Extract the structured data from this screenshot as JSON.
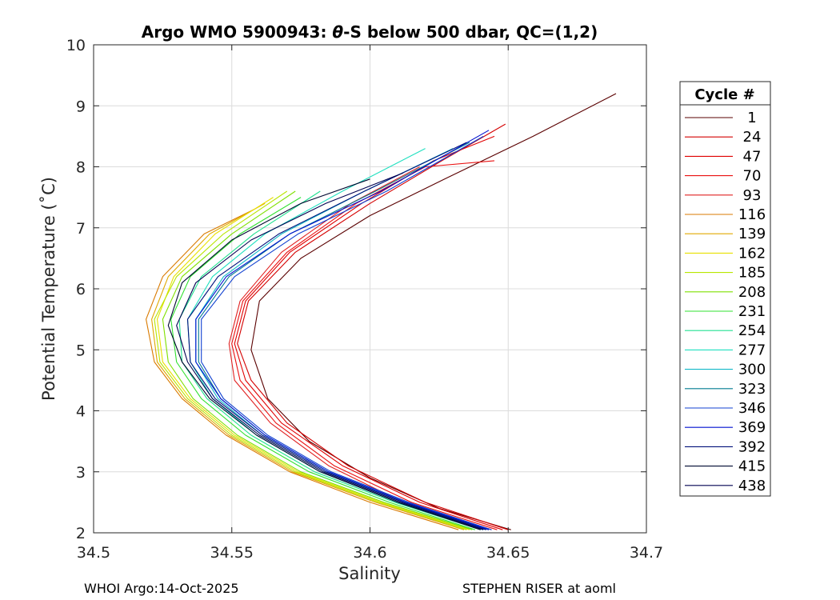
{
  "chart_data": {
    "type": "line",
    "title": {
      "prefix": "Argo WMO 5900943: ",
      "theta": "θ",
      "suffix": "-S below 500 dbar,  QC=(1,2)"
    },
    "xlabel": "Salinity",
    "ylabel": "Potential Temperature (˚C)",
    "xlim": [
      34.5,
      34.7
    ],
    "ylim": [
      2,
      10
    ],
    "xticks": [
      34.5,
      34.55,
      34.6,
      34.65,
      34.7
    ],
    "xtick_labels": [
      "34.5",
      "34.55",
      "34.6",
      "34.65",
      "34.7"
    ],
    "yticks": [
      2,
      3,
      4,
      5,
      6,
      7,
      8,
      9,
      10
    ],
    "ytick_labels": [
      "2",
      "3",
      "4",
      "5",
      "6",
      "7",
      "8",
      "9",
      "10"
    ],
    "grid": true,
    "legend": {
      "title": "Cycle #",
      "placement": "right outside",
      "entries": [
        {
          "label": "1",
          "color": "#5a0000"
        },
        {
          "label": "24",
          "color": "#d40000"
        },
        {
          "label": "47",
          "color": "#e00000"
        },
        {
          "label": "70",
          "color": "#ea1010"
        },
        {
          "label": "93",
          "color": "#e02020"
        },
        {
          "label": "116",
          "color": "#d97a00"
        },
        {
          "label": "139",
          "color": "#e0a800"
        },
        {
          "label": "162",
          "color": "#e8e000"
        },
        {
          "label": "185",
          "color": "#b8e600"
        },
        {
          "label": "208",
          "color": "#7fe000"
        },
        {
          "label": "231",
          "color": "#30e030"
        },
        {
          "label": "254",
          "color": "#20e090"
        },
        {
          "label": "277",
          "color": "#20e0c0"
        },
        {
          "label": "300",
          "color": "#10b8c8"
        },
        {
          "label": "323",
          "color": "#007a90"
        },
        {
          "label": "346",
          "color": "#1040d0"
        },
        {
          "label": "369",
          "color": "#0010d0"
        },
        {
          "label": "392",
          "color": "#00107a"
        },
        {
          "label": "415",
          "color": "#000830"
        },
        {
          "label": "438",
          "color": "#000050"
        }
      ]
    },
    "series": [
      {
        "name": "1",
        "color": "#5a0000",
        "x": [
          34.651,
          34.625,
          34.6,
          34.578,
          34.563,
          34.557,
          34.56,
          34.575,
          34.6,
          34.627,
          34.659,
          34.689
        ],
        "y": [
          2.05,
          2.4,
          2.9,
          3.5,
          4.2,
          5.0,
          5.8,
          6.5,
          7.2,
          7.8,
          8.5,
          9.2
        ]
      },
      {
        "name": "24",
        "color": "#d40000",
        "x": [
          34.65,
          34.62,
          34.592,
          34.57,
          34.557,
          34.552,
          34.556,
          34.573,
          34.6,
          34.626,
          34.649
        ],
        "y": [
          2.05,
          2.5,
          3.1,
          3.8,
          4.5,
          5.1,
          5.8,
          6.6,
          7.4,
          8.1,
          8.7
        ]
      },
      {
        "name": "47",
        "color": "#e00000",
        "x": [
          34.648,
          34.618,
          34.59,
          34.568,
          34.555,
          34.551,
          34.555,
          34.571,
          34.597,
          34.623,
          34.645
        ],
        "y": [
          2.05,
          2.5,
          3.1,
          3.8,
          4.5,
          5.1,
          5.8,
          6.6,
          7.4,
          8.1,
          8.5
        ]
      },
      {
        "name": "70",
        "color": "#ea1010",
        "x": [
          34.646,
          34.615,
          34.587,
          34.566,
          34.553,
          34.55,
          34.554,
          34.57,
          34.595,
          34.62,
          34.645
        ],
        "y": [
          2.05,
          2.5,
          3.1,
          3.8,
          4.5,
          5.1,
          5.8,
          6.6,
          7.4,
          8.0,
          8.1
        ]
      },
      {
        "name": "93",
        "color": "#e02020",
        "x": [
          34.644,
          34.612,
          34.585,
          34.564,
          34.551,
          34.549,
          34.553,
          34.568,
          34.593,
          34.618
        ],
        "y": [
          2.05,
          2.5,
          3.1,
          3.8,
          4.5,
          5.1,
          5.8,
          6.6,
          7.4,
          8.0
        ]
      },
      {
        "name": "116",
        "color": "#d97a00",
        "x": [
          34.632,
          34.6,
          34.571,
          34.548,
          34.532,
          34.522,
          34.519,
          34.525,
          34.54,
          34.558
        ],
        "y": [
          2.05,
          2.5,
          3.0,
          3.6,
          4.2,
          4.8,
          5.5,
          6.2,
          6.9,
          7.3
        ]
      },
      {
        "name": "139",
        "color": "#e0a800",
        "x": [
          34.634,
          34.602,
          34.572,
          34.549,
          34.533,
          34.523,
          34.521,
          34.527,
          34.542,
          34.562
        ],
        "y": [
          2.05,
          2.5,
          3.0,
          3.6,
          4.2,
          4.8,
          5.5,
          6.2,
          6.9,
          7.4
        ]
      },
      {
        "name": "162",
        "color": "#e8e000",
        "x": [
          34.636,
          34.604,
          34.574,
          34.551,
          34.535,
          34.525,
          34.523,
          34.529,
          34.544,
          34.565
        ],
        "y": [
          2.05,
          2.5,
          3.0,
          3.6,
          4.2,
          4.8,
          5.5,
          6.2,
          6.9,
          7.5
        ]
      },
      {
        "name": "185",
        "color": "#b8e600",
        "x": [
          34.635,
          34.603,
          34.573,
          34.55,
          34.534,
          34.524,
          34.522,
          34.53,
          34.547,
          34.57
        ],
        "y": [
          2.05,
          2.5,
          3.0,
          3.6,
          4.2,
          4.8,
          5.5,
          6.2,
          6.9,
          7.6
        ]
      },
      {
        "name": "208",
        "color": "#7fe000",
        "x": [
          34.637,
          34.605,
          34.575,
          34.552,
          34.536,
          34.527,
          34.525,
          34.532,
          34.55,
          34.573
        ],
        "y": [
          2.05,
          2.5,
          3.0,
          3.6,
          4.2,
          4.8,
          5.5,
          6.2,
          6.9,
          7.6
        ]
      },
      {
        "name": "231",
        "color": "#30e030",
        "x": [
          34.638,
          34.607,
          34.578,
          34.555,
          34.539,
          34.53,
          34.528,
          34.535,
          34.553,
          34.575
        ],
        "y": [
          2.05,
          2.5,
          3.0,
          3.6,
          4.2,
          4.8,
          5.5,
          6.2,
          6.9,
          7.5
        ]
      },
      {
        "name": "254",
        "color": "#20e090",
        "x": [
          34.64,
          34.609,
          34.58,
          34.557,
          34.541,
          34.532,
          34.531,
          34.539,
          34.558,
          34.582
        ],
        "y": [
          2.05,
          2.5,
          3.0,
          3.6,
          4.2,
          4.8,
          5.5,
          6.2,
          6.9,
          7.6
        ]
      },
      {
        "name": "277",
        "color": "#20e0c0",
        "x": [
          34.641,
          34.61,
          34.582,
          34.559,
          34.543,
          34.535,
          34.534,
          34.543,
          34.562,
          34.59,
          34.62
        ],
        "y": [
          2.05,
          2.5,
          3.0,
          3.6,
          4.2,
          4.8,
          5.5,
          6.2,
          6.9,
          7.6,
          8.3
        ]
      },
      {
        "name": "300",
        "color": "#10b8c8",
        "x": [
          34.642,
          34.612,
          34.584,
          34.561,
          34.545,
          34.537,
          34.537,
          34.547,
          34.568,
          34.598,
          34.63
        ],
        "y": [
          2.05,
          2.5,
          3.0,
          3.6,
          4.2,
          4.8,
          5.5,
          6.2,
          6.9,
          7.6,
          8.3
        ]
      },
      {
        "name": "323",
        "color": "#007a90",
        "x": [
          34.643,
          34.613,
          34.585,
          34.562,
          34.546,
          34.538,
          34.538,
          34.549,
          34.571,
          34.602,
          34.636
        ],
        "y": [
          2.05,
          2.5,
          3.0,
          3.6,
          4.2,
          4.8,
          5.5,
          6.2,
          6.9,
          7.6,
          8.4
        ]
      },
      {
        "name": "346",
        "color": "#1040d0",
        "x": [
          34.644,
          34.614,
          34.586,
          34.563,
          34.547,
          34.539,
          34.539,
          34.551,
          34.574,
          34.606,
          34.641
        ],
        "y": [
          2.05,
          2.5,
          3.0,
          3.6,
          4.2,
          4.8,
          5.5,
          6.2,
          6.9,
          7.6,
          8.5
        ]
      },
      {
        "name": "369",
        "color": "#0010d0",
        "x": [
          34.643,
          34.613,
          34.585,
          34.562,
          34.546,
          34.537,
          34.537,
          34.548,
          34.571,
          34.604,
          34.643
        ],
        "y": [
          2.05,
          2.5,
          3.0,
          3.6,
          4.2,
          4.8,
          5.5,
          6.2,
          6.9,
          7.6,
          8.6
        ]
      },
      {
        "name": "392",
        "color": "#00107a",
        "x": [
          34.642,
          34.612,
          34.584,
          34.561,
          34.544,
          34.535,
          34.534,
          34.545,
          34.567,
          34.598,
          34.635
        ],
        "y": [
          2.05,
          2.5,
          3.0,
          3.6,
          4.2,
          4.8,
          5.5,
          6.2,
          6.9,
          7.6,
          8.4
        ]
      },
      {
        "name": "415",
        "color": "#000830",
        "x": [
          34.64,
          34.61,
          34.582,
          34.559,
          34.542,
          34.532,
          34.527,
          34.532,
          34.55,
          34.575,
          34.6
        ],
        "y": [
          2.05,
          2.5,
          3.0,
          3.6,
          4.2,
          4.8,
          5.4,
          6.1,
          6.8,
          7.4,
          7.8
        ]
      },
      {
        "name": "438",
        "color": "#000050",
        "x": [
          34.641,
          34.611,
          34.583,
          34.56,
          34.543,
          34.534,
          34.53,
          34.537,
          34.557,
          34.584,
          34.612
        ],
        "y": [
          2.05,
          2.5,
          3.0,
          3.6,
          4.2,
          4.8,
          5.4,
          6.1,
          6.8,
          7.4,
          7.9
        ]
      }
    ]
  },
  "footer": {
    "left": "WHOI Argo:14-Oct-2025",
    "right": "STEPHEN RISER at aoml"
  }
}
